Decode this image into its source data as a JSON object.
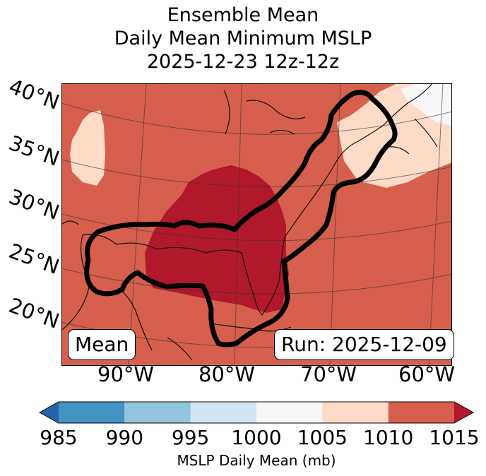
{
  "title": {
    "line1": "Ensemble Mean",
    "line2": "Daily Mean Minimum MSLP",
    "line3": "2025-12-23 12z-12z"
  },
  "latitude_labels": [
    "40°N",
    "35°N",
    "30°N",
    "25°N",
    "20°N"
  ],
  "longitude_labels": [
    "90°W",
    "80°W",
    "70°W",
    "60°W"
  ],
  "legend_box": "Mean",
  "run_box": "Run: 2025-12-09",
  "colorbar": {
    "label": "MSLP Daily Mean (mb)",
    "ticks": [
      "985",
      "990",
      "995",
      "1000",
      "1005",
      "1010",
      "1015"
    ],
    "bins": [
      {
        "range": "985-990",
        "color": "#4393c3"
      },
      {
        "range": "990-995",
        "color": "#92c5de"
      },
      {
        "range": "995-1000",
        "color": "#d1e5f0"
      },
      {
        "range": "1000-1005",
        "color": "#f7f7f7"
      },
      {
        "range": "1005-1010",
        "color": "#fddbc7"
      },
      {
        "range": "1010-1015",
        "color": "#d6604d"
      }
    ],
    "under_color": "#2166ac",
    "over_color": "#b2182b"
  },
  "field_colors": {
    "background": "#d6604d",
    "high_core": "#b2182b",
    "light": "#fddbc7",
    "white": "#f7f7f7",
    "contour": "#000000",
    "coast": "#111111"
  }
}
